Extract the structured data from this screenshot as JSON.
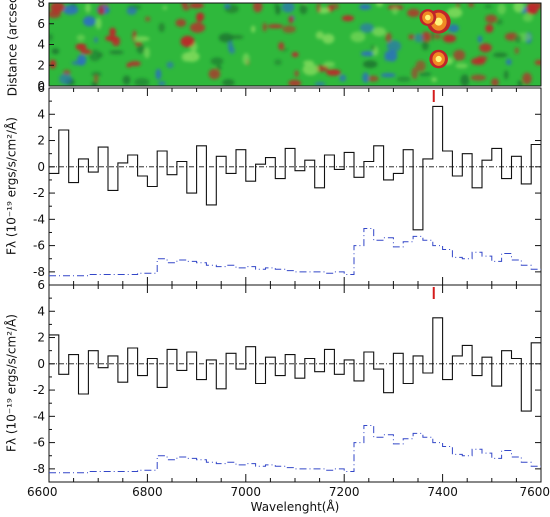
{
  "colors": {
    "spectrum": "#111111",
    "sky_model": "#3347c8",
    "line_marker": "#d41c1c",
    "image_background": "#2fb83c"
  },
  "chart_data": [
    {
      "type": "heatmap",
      "ylabel": "Distance (arcsec)",
      "ylim": [
        0,
        8
      ],
      "yticks": [
        "0",
        "2",
        "4",
        "6",
        "8"
      ],
      "xlim": [
        6600,
        7600
      ],
      "sources": [
        {
          "x": 7392,
          "y": 6.2,
          "peak": 1.0
        },
        {
          "x": 7392,
          "y": 2.6,
          "peak": 0.7
        },
        {
          "x": 7370,
          "y": 6.6,
          "peak": 0.6
        }
      ]
    },
    {
      "type": "line",
      "ylabel": "Fλ (10⁻¹⁹ ergs/s/cm²/Å)",
      "xlim": [
        6600,
        7600
      ],
      "ylim": [
        -9,
        6
      ],
      "yticks": [
        "-8",
        "-6",
        "-4",
        "-2",
        "0",
        "2",
        "4",
        "6"
      ],
      "line_marker_x": 7382,
      "series": [
        {
          "role": "spectrum",
          "style": "step",
          "x": [
            6600,
            6620,
            6640,
            6660,
            6680,
            6700,
            6720,
            6740,
            6760,
            6780,
            6800,
            6820,
            6840,
            6860,
            6880,
            6900,
            6920,
            6940,
            6960,
            6980,
            7000,
            7020,
            7040,
            7060,
            7080,
            7100,
            7120,
            7140,
            7160,
            7180,
            7200,
            7220,
            7240,
            7260,
            7280,
            7300,
            7320,
            7340,
            7360,
            7380,
            7400,
            7420,
            7440,
            7460,
            7480,
            7500,
            7520,
            7540,
            7560,
            7580,
            7600
          ],
          "values": [
            -0.5,
            2.8,
            -1.2,
            0.6,
            -0.4,
            1.5,
            -1.8,
            0.3,
            0.9,
            -0.7,
            -1.5,
            1.2,
            -0.6,
            0.4,
            -2.0,
            1.6,
            -2.9,
            0.8,
            -0.5,
            1.3,
            -1.1,
            0.2,
            0.7,
            -0.9,
            1.4,
            -0.3,
            0.5,
            -1.6,
            0.9,
            -0.2,
            1.1,
            -0.8,
            0.4,
            1.6,
            -1.0,
            -0.5,
            1.3,
            -4.8,
            0.6,
            4.6,
            1.2,
            -0.7,
            1.0,
            -1.6,
            0.5,
            1.4,
            -0.9,
            0.8,
            -1.3,
            1.7,
            0.3
          ]
        },
        {
          "role": "sky",
          "style": "dashed-step",
          "x": [
            6600,
            6620,
            6640,
            6660,
            6680,
            6700,
            6720,
            6740,
            6760,
            6780,
            6800,
            6820,
            6840,
            6860,
            6880,
            6900,
            6920,
            6940,
            6960,
            6980,
            7000,
            7020,
            7040,
            7060,
            7080,
            7100,
            7120,
            7140,
            7160,
            7180,
            7200,
            7220,
            7240,
            7260,
            7280,
            7300,
            7320,
            7340,
            7360,
            7380,
            7400,
            7420,
            7440,
            7460,
            7480,
            7500,
            7520,
            7540,
            7560,
            7580,
            7600
          ],
          "values": [
            -8.3,
            -8.3,
            -8.3,
            -8.3,
            -8.2,
            -8.2,
            -8.2,
            -8.2,
            -8.2,
            -8.1,
            -8.1,
            -7.0,
            -7.3,
            -7.1,
            -7.2,
            -7.3,
            -7.5,
            -7.6,
            -7.5,
            -7.7,
            -7.6,
            -7.8,
            -7.7,
            -7.8,
            -7.9,
            -8.0,
            -8.0,
            -8.0,
            -8.1,
            -8.0,
            -8.2,
            -6.0,
            -4.7,
            -5.6,
            -5.4,
            -6.1,
            -5.7,
            -5.3,
            -5.6,
            -6.0,
            -6.3,
            -6.9,
            -7.0,
            -6.5,
            -6.8,
            -7.2,
            -6.6,
            -7.1,
            -7.5,
            -7.8,
            -8.0
          ]
        }
      ]
    },
    {
      "type": "line",
      "xlabel": "Wavelenght(Å)",
      "ylabel": "Fλ (10⁻¹⁹ ergs/s/cm²/Å)",
      "xlim": [
        6600,
        7600
      ],
      "ylim": [
        -9,
        6
      ],
      "yticks": [
        "-8",
        "-6",
        "-4",
        "-2",
        "0",
        "2",
        "4",
        "6"
      ],
      "xticks": [
        "6600",
        "6800",
        "7000",
        "7200",
        "7400",
        "7600"
      ],
      "line_marker_x": 7382,
      "series": [
        {
          "role": "spectrum",
          "style": "step",
          "x": [
            6600,
            6620,
            6640,
            6660,
            6680,
            6700,
            6720,
            6740,
            6760,
            6780,
            6800,
            6820,
            6840,
            6860,
            6880,
            6900,
            6920,
            6940,
            6960,
            6980,
            7000,
            7020,
            7040,
            7060,
            7080,
            7100,
            7120,
            7140,
            7160,
            7180,
            7200,
            7220,
            7240,
            7260,
            7280,
            7300,
            7320,
            7340,
            7360,
            7380,
            7400,
            7420,
            7440,
            7460,
            7480,
            7500,
            7520,
            7540,
            7560,
            7580,
            7600
          ],
          "values": [
            2.2,
            -0.8,
            0.7,
            -2.3,
            1.0,
            -0.3,
            0.6,
            -1.4,
            1.2,
            -0.9,
            0.4,
            -1.8,
            1.1,
            -0.5,
            0.9,
            -1.2,
            0.3,
            -1.9,
            0.8,
            -0.4,
            1.3,
            -1.5,
            0.5,
            -0.9,
            0.7,
            -1.1,
            0.4,
            -0.6,
            1.1,
            -0.8,
            0.3,
            -1.3,
            0.9,
            -0.4,
            -2.2,
            0.8,
            -1.5,
            0.6,
            -0.7,
            3.5,
            -1.2,
            0.6,
            1.4,
            -0.9,
            0.5,
            -1.7,
            1.0,
            0.4,
            -3.6,
            1.6,
            -0.5
          ]
        },
        {
          "role": "sky",
          "style": "dashed-step",
          "x": [
            6600,
            6620,
            6640,
            6660,
            6680,
            6700,
            6720,
            6740,
            6760,
            6780,
            6800,
            6820,
            6840,
            6860,
            6880,
            6900,
            6920,
            6940,
            6960,
            6980,
            7000,
            7020,
            7040,
            7060,
            7080,
            7100,
            7120,
            7140,
            7160,
            7180,
            7200,
            7220,
            7240,
            7260,
            7280,
            7300,
            7320,
            7340,
            7360,
            7380,
            7400,
            7420,
            7440,
            7460,
            7480,
            7500,
            7520,
            7540,
            7560,
            7580,
            7600
          ],
          "values": [
            -8.3,
            -8.3,
            -8.3,
            -8.3,
            -8.2,
            -8.2,
            -8.2,
            -8.2,
            -8.2,
            -8.1,
            -8.1,
            -7.0,
            -7.3,
            -7.1,
            -7.2,
            -7.3,
            -7.5,
            -7.6,
            -7.5,
            -7.7,
            -7.6,
            -7.8,
            -7.7,
            -7.8,
            -7.9,
            -8.0,
            -8.0,
            -8.0,
            -8.1,
            -8.0,
            -8.2,
            -6.0,
            -4.7,
            -5.6,
            -5.4,
            -6.1,
            -5.7,
            -5.3,
            -5.6,
            -6.0,
            -6.3,
            -6.9,
            -7.0,
            -6.5,
            -6.8,
            -7.2,
            -6.6,
            -7.1,
            -7.5,
            -7.8,
            -8.0
          ]
        }
      ]
    }
  ]
}
